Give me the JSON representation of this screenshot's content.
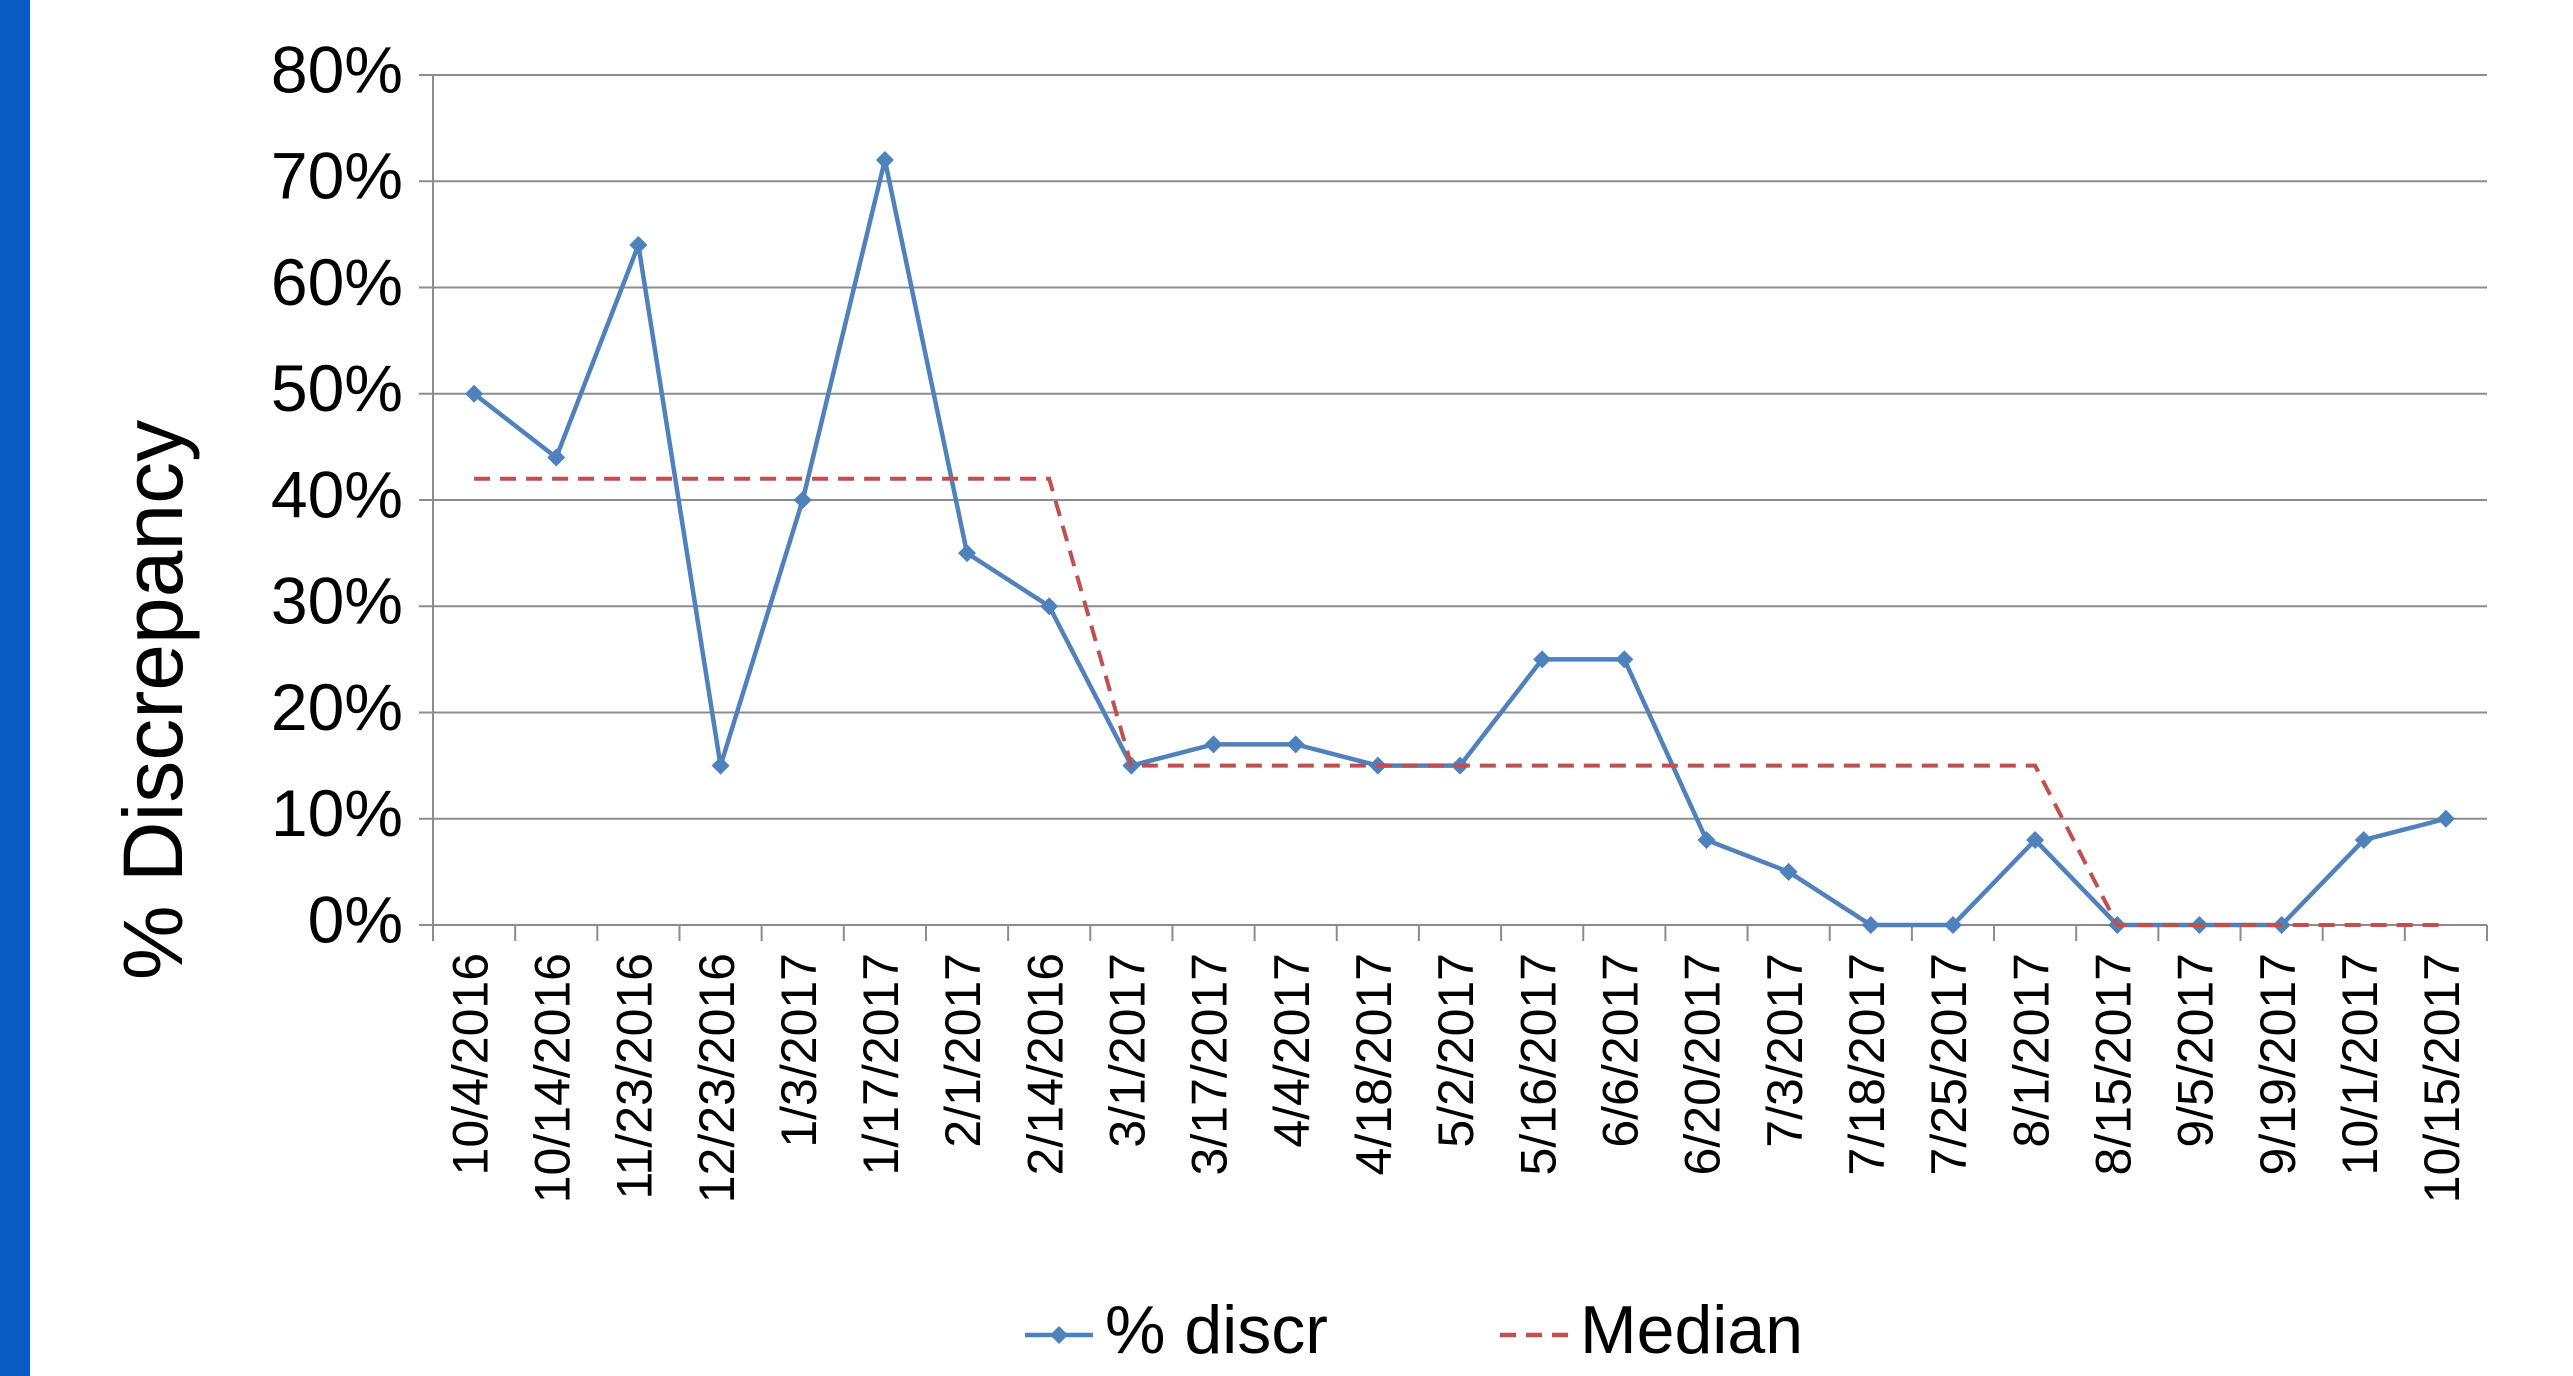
{
  "chart_data": {
    "type": "line",
    "y_label": "% Discrepancy",
    "categories": [
      "10/4/2016",
      "10/14/2016",
      "11/23/2016",
      "12/23/2016",
      "1/3/2017",
      "1/17/2017",
      "2/1/2017",
      "2/14/2016",
      "3/1/2017",
      "3/17/2017",
      "4/4/2017",
      "4/18/2017",
      "5/2/2017",
      "5/16/2017",
      "6/6/2017",
      "6/20/2017",
      "7/3/2017",
      "7/18/2017",
      "7/25/2017",
      "8/1/2017",
      "8/15/2017",
      "9/5/2017",
      "9/19/2017",
      "10/1/2017",
      "10/15/2017"
    ],
    "series": [
      {
        "name": "% discr",
        "color": "#4f81bd",
        "style": "solid",
        "marker": "diamond",
        "values": [
          50,
          44,
          64,
          15,
          40,
          72,
          35,
          30,
          15,
          17,
          17,
          15,
          15,
          25,
          25,
          8,
          5,
          0,
          0,
          8,
          0,
          0,
          0,
          8,
          10
        ]
      },
      {
        "name": "Median",
        "color": "#c0504d",
        "style": "dashed",
        "values": [
          42,
          42,
          42,
          42,
          42,
          42,
          42,
          42,
          15,
          15,
          15,
          15,
          15,
          15,
          15,
          15,
          15,
          15,
          15,
          15,
          0,
          0,
          0,
          0,
          0
        ]
      }
    ],
    "ylim": [
      0,
      80
    ],
    "yticks": [
      {
        "value": 0,
        "label": "0%"
      },
      {
        "value": 10,
        "label": "10%"
      },
      {
        "value": 20,
        "label": "20%"
      },
      {
        "value": 30,
        "label": "30%"
      },
      {
        "value": 40,
        "label": "40%"
      },
      {
        "value": 50,
        "label": "50%"
      },
      {
        "value": 60,
        "label": "60%"
      },
      {
        "value": 70,
        "label": "70%"
      },
      {
        "value": 80,
        "label": "80%"
      }
    ],
    "grid": true,
    "legend": "bottom"
  }
}
